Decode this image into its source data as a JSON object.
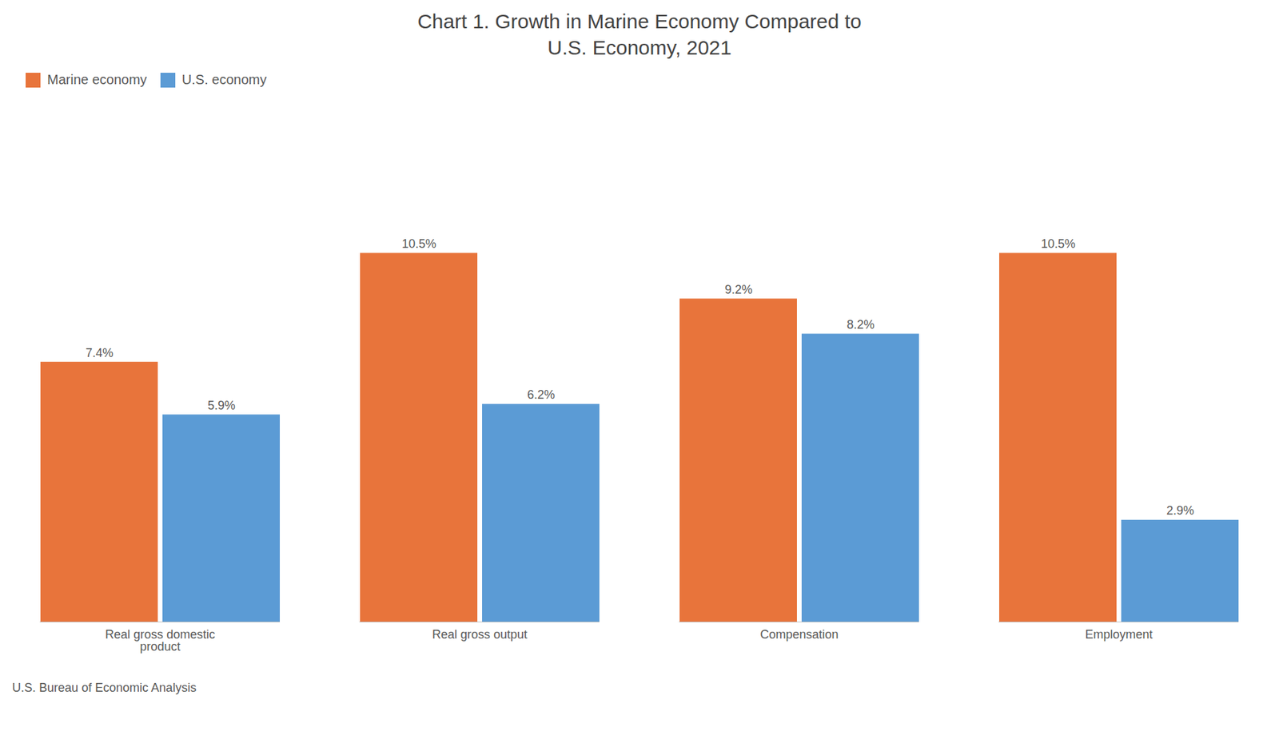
{
  "chart_data": {
    "type": "bar",
    "title": "Chart 1. Growth in Marine Economy Compared to\nU.S. Economy, 2021",
    "categories": [
      "Real gross domestic\nproduct",
      "Real gross output",
      "Compensation",
      "Employment"
    ],
    "series": [
      {
        "name": "Marine economy",
        "color": "#E8743B",
        "values": [
          7.4,
          10.5,
          9.2,
          10.5
        ],
        "value_labels": [
          "7.4%",
          "10.5%",
          "9.2%",
          "10.5%"
        ]
      },
      {
        "name": "U.S. economy",
        "color": "#5B9BD5",
        "values": [
          5.9,
          6.2,
          8.2,
          2.9
        ],
        "value_labels": [
          "5.9%",
          "6.2%",
          "8.2%",
          "2.9%"
        ]
      }
    ],
    "ylim": [
      0,
      14
    ],
    "grid": false,
    "legend": "upper left",
    "data_labels": true,
    "tick_labels": "x",
    "annotations": [
      "U.S. Bureau of Economic Analysis"
    ]
  }
}
